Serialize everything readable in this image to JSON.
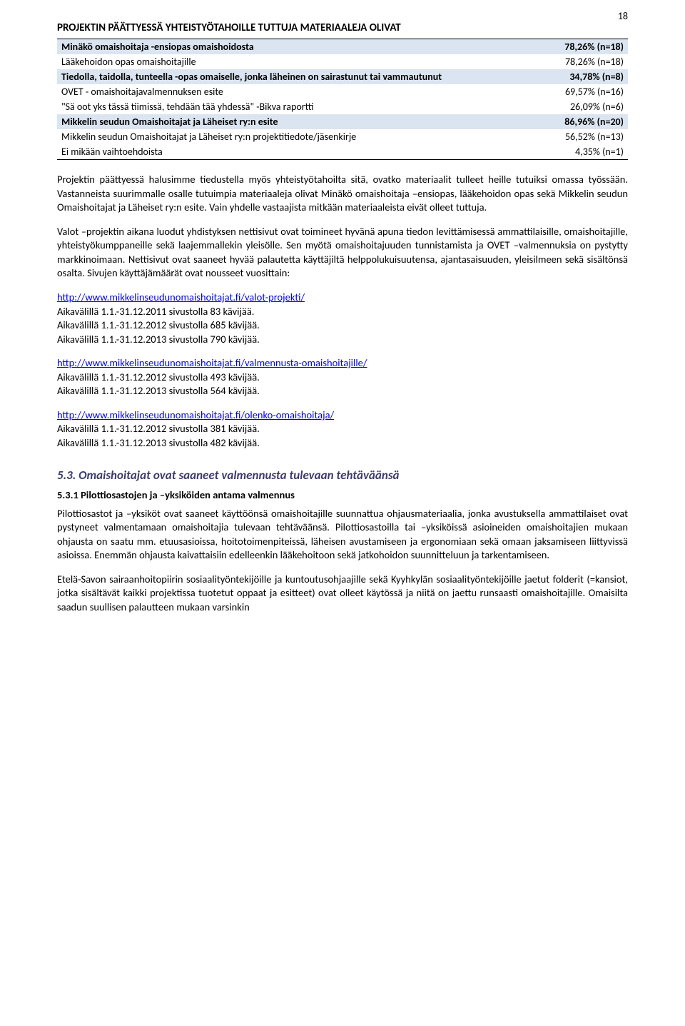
{
  "page_number": "18",
  "section_title": "PROJEKTIN PÄÄTTYESSÄ YHTEISTYÖTAHOILLE TUTTUJA MATERIAALEJA OLIVAT",
  "table": {
    "accent_bg": "#dbe5f1",
    "rows": [
      {
        "label": "Minäkö omaishoitaja -ensiopas omaishoidosta",
        "value": "78,26% (n=18)",
        "accent": true
      },
      {
        "label": "Lääkehoidon opas omaishoitajille",
        "value": "78,26% (n=18)",
        "accent": false
      },
      {
        "label": "Tiedolla, taidolla, tunteella -opas omaiselle, jonka läheinen on sairastunut tai vammautunut",
        "value": "34,78% (n=8)",
        "accent": true
      },
      {
        "label": "OVET - omaishoitajavalmennuksen esite",
        "value": "69,57% (n=16)",
        "accent": false
      },
      {
        "label": "\"Sä oot yks tässä tiimissä, tehdään tää yhdessä\" -Bikva raportti",
        "value": "26,09% (n=6)",
        "accent": false
      },
      {
        "label": "Mikkelin seudun Omaishoitajat ja Läheiset ry:n esite",
        "value": "86,96% (n=20)",
        "accent": true
      },
      {
        "label": "Mikkelin seudun Omaishoitajat ja Läheiset ry:n projektitiedote/jäsenkirje",
        "value": "56,52% (n=13)",
        "accent": false
      },
      {
        "label": "Ei mikään vaihtoehdoista",
        "value": "4,35% (n=1)",
        "accent": false
      }
    ]
  },
  "paragraphs": [
    "Projektin päättyessä halusimme tiedustella myös yhteistyötahoilta sitä, ovatko materiaalit tulleet heille tutuiksi omassa työssään. Vastanneista suurimmalle osalle tutuimpia materiaaleja olivat Minäkö omaishoitaja –ensiopas, lääkehoidon opas sekä Mikkelin seudun Omaishoitajat ja Läheiset ry:n esite. Vain yhdelle vastaajista mitkään materiaaleista eivät olleet tuttuja.",
    "Valot –projektin aikana luodut yhdistyksen nettisivut ovat toimineet hyvänä apuna tiedon levittämisessä ammattilaisille, omaishoitajille, yhteistyökumppaneille sekä laajemmallekin yleisölle. Sen myötä omaishoitajuuden tunnistamista ja OVET –valmennuksia on pystytty markkinoimaan. Nettisivut ovat saaneet hyvää palautetta käyttäjiltä helppolukuisuutensa, ajantasaisuuden, yleisilmeen sekä sisältönsä osalta. Sivujen käyttäjämäärät ovat nousseet vuosittain:"
  ],
  "link_blocks": [
    {
      "url": "http://www.mikkelinseudunomaishoitajat.fi/valot-projekti/",
      "lines": [
        "Aikavälillä 1.1.-31.12.2011 sivustolla 83 kävijää.",
        "Aikavälillä 1.1.-31.12.2012 sivustolla 685 kävijää.",
        "Aikavälillä 1.1.-31.12.2013 sivustolla 790 kävijää."
      ]
    },
    {
      "url": "http://www.mikkelinseudunomaishoitajat.fi/valmennusta-omaishoitajille/",
      "lines": [
        "Aikavälillä 1.1.-31.12.2012 sivustolla 493 kävijää.",
        "Aikavälillä 1.1.-31.12.2013 sivustolla 564 kävijää."
      ]
    },
    {
      "url": "http://www.mikkelinseudunomaishoitajat.fi/olenko-omaishoitaja/",
      "lines": [
        "Aikavälillä 1.1.-31.12.2012 sivustolla 381 kävijää.",
        "Aikavälillä 1.1.-31.12.2013 sivustolla 482 kävijää."
      ]
    }
  ],
  "subheading": "5.3. Omaishoitajat ovat saaneet valmennusta tulevaan tehtäväänsä",
  "subsub": "5.3.1 Pilottiosastojen ja –yksiköiden antama valmennus",
  "paragraphs2": [
    "Pilottiosastot ja –yksiköt ovat saaneet käyttöönsä omaishoitajille suunnattua ohjausmateriaalia, jonka avustuksella ammattilaiset ovat pystyneet valmentamaan omaishoitajia tulevaan tehtäväänsä. Pilottiosastoilla tai –yksiköissä asioineiden omaishoitajien mukaan ohjausta on saatu mm. etuusasioissa, hoitotoimenpiteissä, läheisen avustamiseen ja ergonomiaan sekä omaan jaksamiseen liittyvissä asioissa. Enemmän ohjausta kaivattaisiin edelleenkin lääkehoitoon sekä jatkohoidon suunnitteluun ja tarkentamiseen.",
    "Etelä-Savon sairaanhoitopiirin sosiaalityöntekijöille ja kuntoutusohjaajille sekä Kyyhkylän sosiaalityöntekijöille jaetut folderit (=kansiot, jotka sisältävät kaikki projektissa tuotetut oppaat ja esitteet) ovat olleet käytössä ja niitä on jaettu runsaasti omaishoitajille. Omaisilta saadun suullisen palautteen mukaan varsinkin"
  ]
}
